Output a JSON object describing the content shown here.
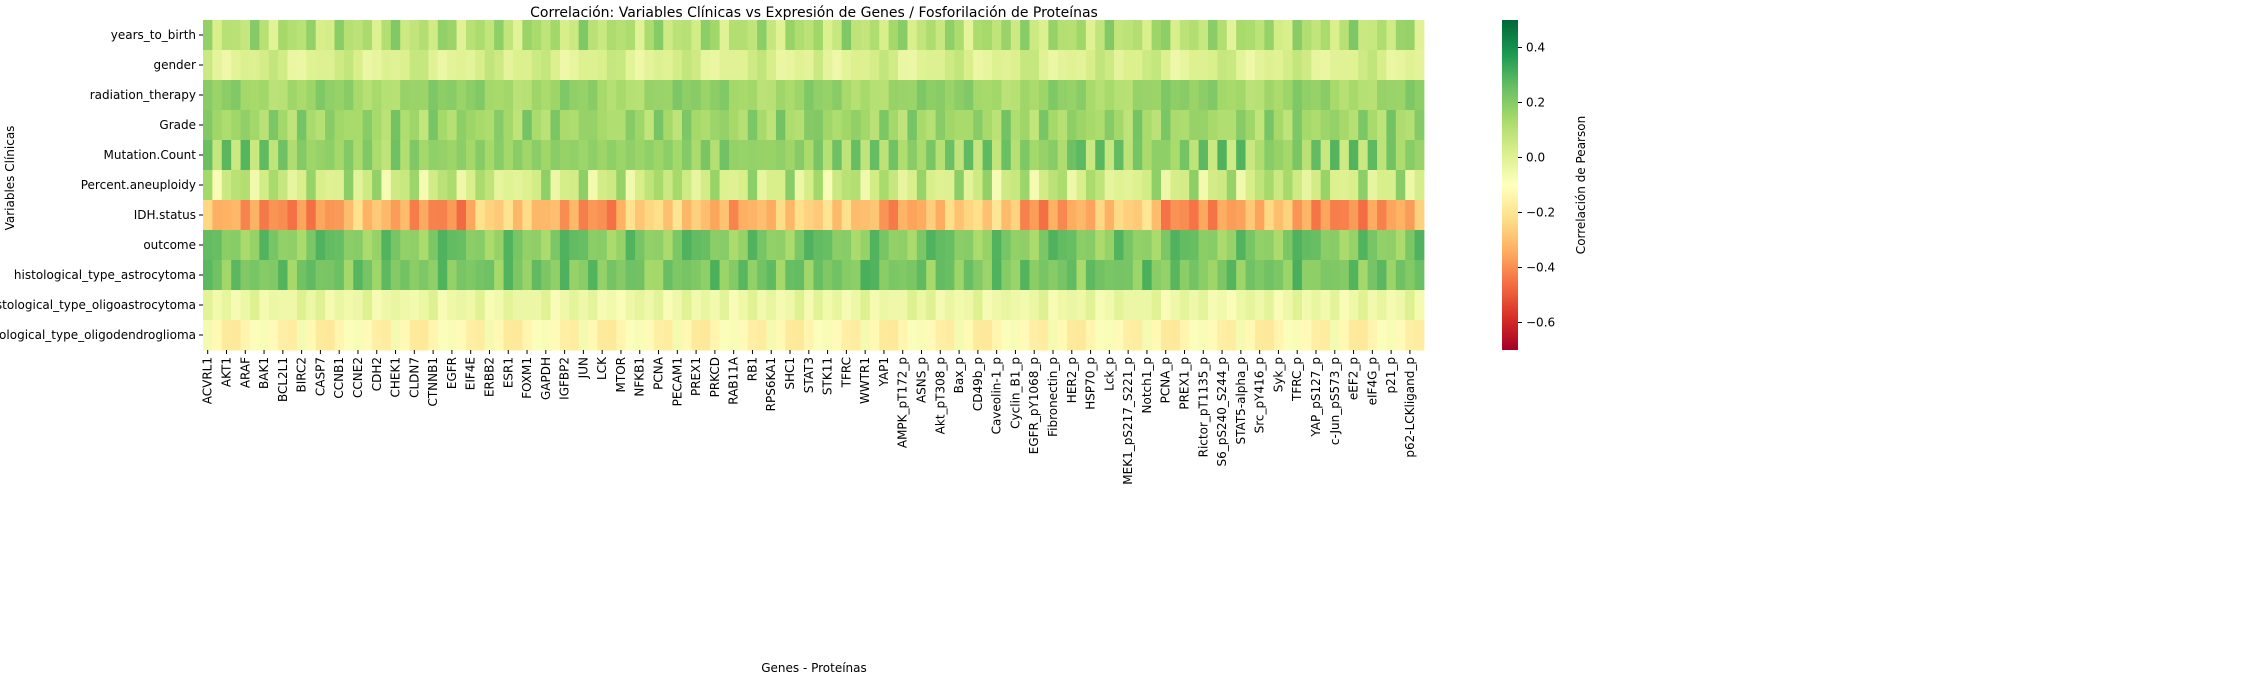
{
  "chart_data": {
    "type": "heatmap",
    "title": "Correlación: Variables Clínicas vs Expresión de Genes / Fosforilación de Proteínas",
    "xlabel": "Genes - Proteínas",
    "ylabel": "Variables Clínicas",
    "colorbar_label": "Correlación de Pearson",
    "colormap": "RdYlGn",
    "vmin": -0.7,
    "vmax": 0.5,
    "colorbar_ticks": [
      0.4,
      0.2,
      0.0,
      -0.2,
      -0.4,
      -0.6
    ],
    "colorbar_tick_labels": [
      "0.4",
      "0.2",
      "0.0",
      "−0.2",
      "−0.4",
      "−0.6"
    ],
    "rows": [
      "years_to_birth",
      "gender",
      "radiation_therapy",
      "Grade",
      "Mutation.Count",
      "Percent.aneuploidy",
      "IDH.status",
      "outcome",
      "histological_type_astrocytoma",
      "histological_type_oligoastrocytoma",
      "histological_type_oligodendroglioma"
    ],
    "x_tick_labels": [
      "ACVRL1",
      "AKT1",
      "ARAF",
      "BAK1",
      "BCL2L1",
      "BIRC2",
      "CASP7",
      "CCNB1",
      "CCNE2",
      "CDH2",
      "CHEK1",
      "CLDN7",
      "CTNNB1",
      "EGFR",
      "EIF4E",
      "ERBB2",
      "ESR1",
      "FOXM1",
      "GAPDH",
      "IGFBP2",
      "JUN",
      "LCK",
      "MTOR",
      "NFKB1",
      "PCNA",
      "PECAM1",
      "PREX1",
      "PRKCD",
      "RAB11A",
      "RB1",
      "RPS6KA1",
      "SHC1",
      "STAT3",
      "STK11",
      "TFRC",
      "WWTR1",
      "YAP1",
      "AMPK_pT172_p",
      "ASNS_p",
      "Akt_pT308_p",
      "Bax_p",
      "CD49b_p",
      "Caveolin-1_p",
      "Cyclin_B1_p",
      "EGFR_pY1068_p",
      "Fibronectin_p",
      "HER2_p",
      "HSP70_p",
      "Lck_p",
      "MEK1_pS217_S221_p",
      "Notch1_p",
      "PCNA_p",
      "PREX1_p",
      "Rictor_pT1135_p",
      "S6_pS240_S244_p",
      "STAT5-alpha_p",
      "Src_pY416_p",
      "Syk_p",
      "TFRC_p",
      "YAP_pS127_p",
      "c-Jun_pS573_p",
      "eEF2_p",
      "eIF4G_p",
      "p21_p",
      "p62-LCKligand_p"
    ],
    "n_columns": 130,
    "column_profile_note": "values estimated per row with per-column variation",
    "row_means": [
      0.1,
      0.01,
      0.15,
      0.15,
      0.17,
      0.05,
      -0.33,
      0.2,
      0.22,
      -0.04,
      -0.13
    ],
    "row_spread": [
      0.12,
      0.07,
      0.07,
      0.09,
      0.13,
      0.15,
      0.14,
      0.1,
      0.09,
      0.05,
      0.1
    ]
  }
}
